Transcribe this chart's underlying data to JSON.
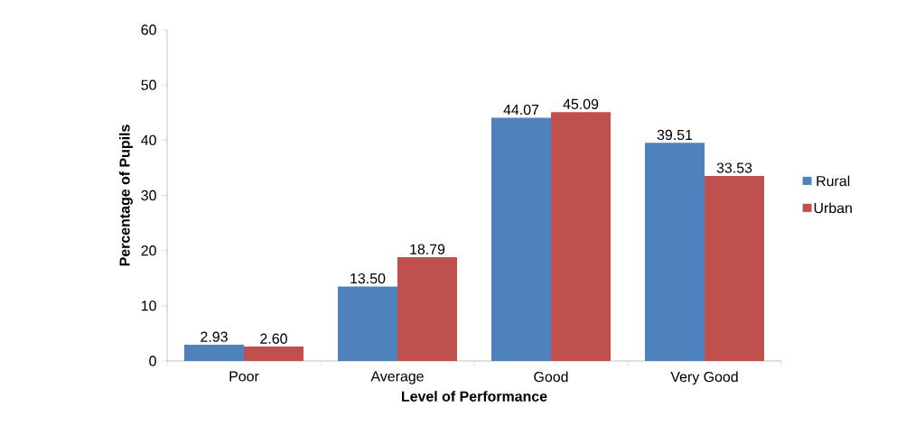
{
  "chart_data": {
    "type": "bar",
    "xlabel": "Level of Performance",
    "ylabel": "Percentage of Pupils",
    "categories": [
      "Poor",
      "Average",
      "Good",
      "Very Good"
    ],
    "series": [
      {
        "name": "Rural",
        "color": "#4f81bd",
        "values": [
          2.93,
          13.5,
          44.07,
          39.51
        ],
        "value_labels": [
          "2.93",
          "13.50",
          "44.07",
          "39.51"
        ]
      },
      {
        "name": "Urban",
        "color": "#c0504d",
        "values": [
          2.6,
          18.79,
          45.09,
          33.53
        ],
        "value_labels": [
          "2.60",
          "18.79",
          "45.09",
          "33.53"
        ]
      }
    ],
    "ylim": [
      0,
      60
    ],
    "yticks": [
      0,
      10,
      20,
      30,
      40,
      50,
      60
    ],
    "grid": false,
    "legend": "right"
  }
}
